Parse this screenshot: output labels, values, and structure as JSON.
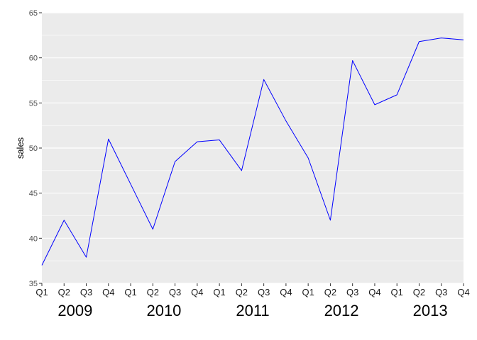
{
  "chart_data": {
    "type": "line",
    "xlabel": "",
    "ylabel": "sales",
    "ylim": [
      35,
      65
    ],
    "yticks": [
      35,
      40,
      45,
      50,
      55,
      60,
      65
    ],
    "categories": [
      "Q1",
      "Q2",
      "Q3",
      "Q4",
      "Q1",
      "Q2",
      "Q3",
      "Q4",
      "Q1",
      "Q2",
      "Q3",
      "Q4",
      "Q1",
      "Q2",
      "Q3",
      "Q4",
      "Q1",
      "Q2",
      "Q3",
      "Q4"
    ],
    "year_groups": [
      {
        "label": "2009",
        "quarters": 4
      },
      {
        "label": "2010",
        "quarters": 4
      },
      {
        "label": "2011",
        "quarters": 4
      },
      {
        "label": "2012",
        "quarters": 4
      },
      {
        "label": "2013",
        "quarters": 4
      }
    ],
    "series": [
      {
        "values": [
          37.0,
          42.0,
          37.9,
          51.0,
          46.0,
          41.0,
          48.5,
          50.7,
          50.9,
          47.5,
          57.6,
          53.0,
          48.9,
          42.0,
          59.7,
          54.8,
          55.9,
          61.8,
          62.2,
          62.0
        ]
      }
    ],
    "grid": true,
    "colors": {
      "line": "#0000ff",
      "panel": "#ebebeb",
      "gridline": "#ffffff"
    }
  }
}
